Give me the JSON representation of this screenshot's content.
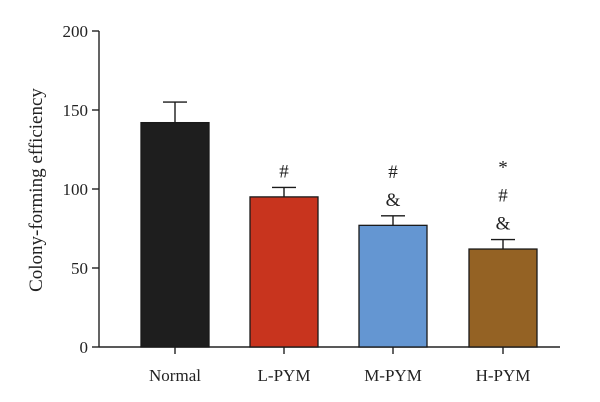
{
  "chart_data": {
    "type": "bar",
    "title": "",
    "xlabel": "",
    "ylabel": "Colony-forming efficiency",
    "ylim": [
      0,
      200
    ],
    "yticks": [
      0,
      50,
      100,
      150,
      200
    ],
    "grid": false,
    "categories": [
      "Normal",
      "L-PYM",
      "M-PYM",
      "H-PYM"
    ],
    "values": [
      142,
      95,
      77,
      62
    ],
    "errors": [
      13,
      6,
      6,
      6
    ],
    "colors": [
      "#1e1e1e",
      "#c8341e",
      "#6496d2",
      "#946224"
    ],
    "annotations": [
      [],
      [
        "#"
      ],
      [
        "&",
        "#"
      ],
      [
        "&",
        "#",
        "*"
      ]
    ]
  }
}
